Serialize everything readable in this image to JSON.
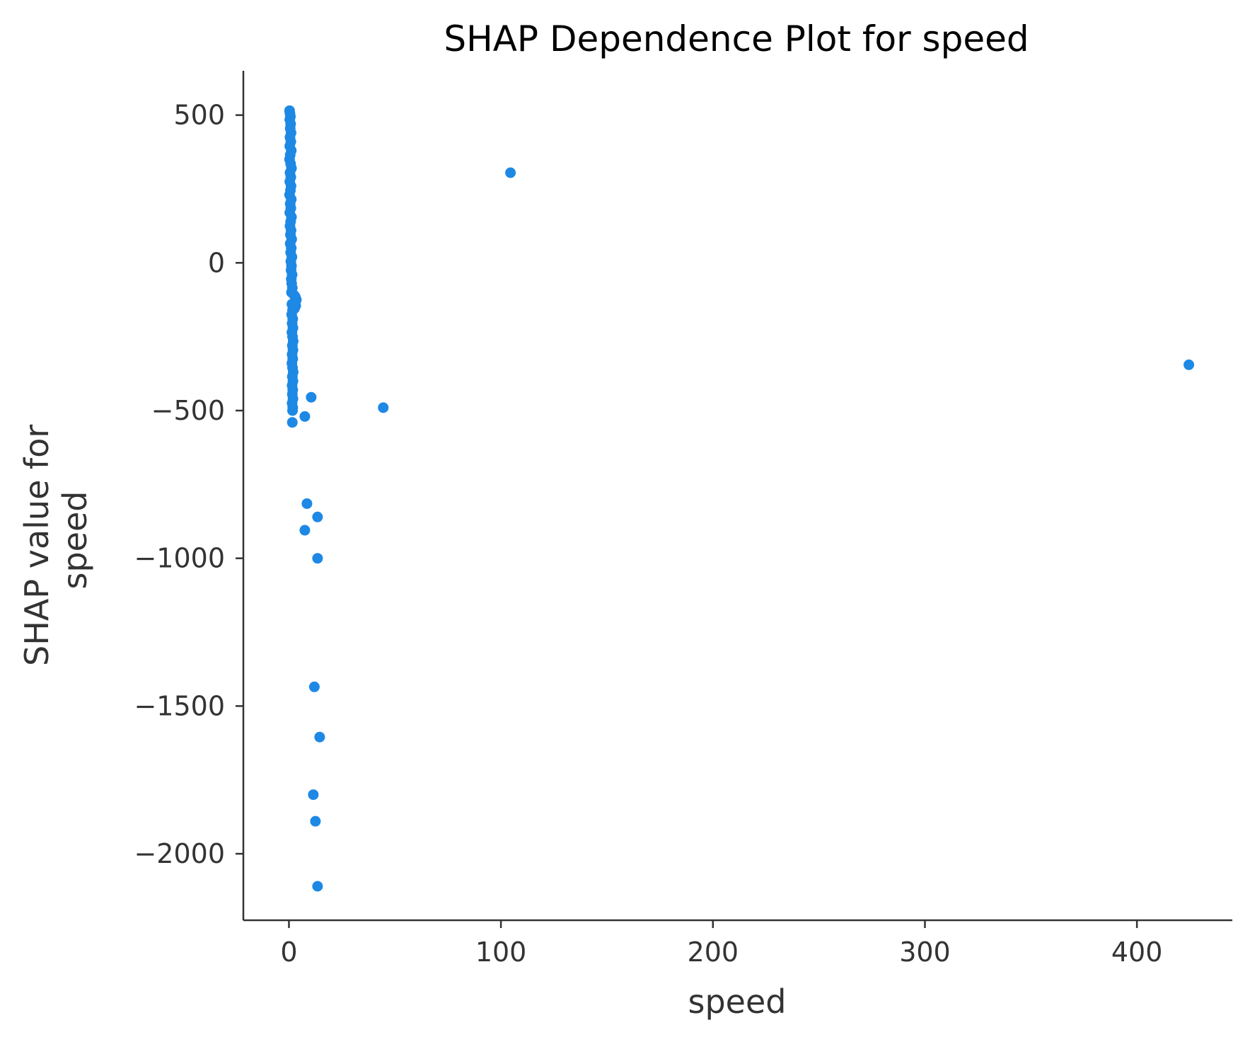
{
  "chart_data": {
    "type": "scatter",
    "title": "SHAP Dependence Plot for speed",
    "xlabel": "speed",
    "ylabel_lines": [
      "SHAP value for",
      "speed"
    ],
    "xlim": [
      -21.5,
      445
    ],
    "ylim": [
      -2225,
      650
    ],
    "xticks": [
      0,
      100,
      200,
      300,
      400
    ],
    "xtick_labels": [
      "0",
      "100",
      "200",
      "300",
      "400"
    ],
    "yticks": [
      500,
      0,
      -500,
      -1000,
      -1500,
      -2000
    ],
    "ytick_labels": [
      "500",
      "0",
      "−500",
      "−1000",
      "−1500",
      "−2000"
    ],
    "grid": false,
    "legend": "none",
    "colors": {
      "point": "#1E88E5",
      "axis": "#333333",
      "title": "#000000"
    },
    "series": [
      {
        "points": [
          {
            "x": 0.3,
            "y": 515
          },
          {
            "x": 0.5,
            "y": 505
          },
          {
            "x": 0.7,
            "y": 495
          },
          {
            "x": 0.4,
            "y": 485
          },
          {
            "x": 0.8,
            "y": 470
          },
          {
            "x": 0.6,
            "y": 455
          },
          {
            "x": 1.0,
            "y": 440
          },
          {
            "x": 0.5,
            "y": 425
          },
          {
            "x": 0.9,
            "y": 410
          },
          {
            "x": 0.4,
            "y": 395
          },
          {
            "x": 1.1,
            "y": 380
          },
          {
            "x": 0.6,
            "y": 365
          },
          {
            "x": 0.3,
            "y": 350
          },
          {
            "x": 0.8,
            "y": 335
          },
          {
            "x": 1.2,
            "y": 320
          },
          {
            "x": 0.5,
            "y": 305
          },
          {
            "x": 0.9,
            "y": 290
          },
          {
            "x": 0.4,
            "y": 275
          },
          {
            "x": 1.0,
            "y": 260
          },
          {
            "x": 0.7,
            "y": 245
          },
          {
            "x": 0.3,
            "y": 230
          },
          {
            "x": 1.1,
            "y": 215
          },
          {
            "x": 0.6,
            "y": 200
          },
          {
            "x": 0.9,
            "y": 185
          },
          {
            "x": 0.4,
            "y": 170
          },
          {
            "x": 1.2,
            "y": 155
          },
          {
            "x": 0.8,
            "y": 140
          },
          {
            "x": 0.5,
            "y": 125
          },
          {
            "x": 1.0,
            "y": 110
          },
          {
            "x": 0.7,
            "y": 95
          },
          {
            "x": 1.3,
            "y": 80
          },
          {
            "x": 0.6,
            "y": 65
          },
          {
            "x": 1.1,
            "y": 50
          },
          {
            "x": 0.8,
            "y": 35
          },
          {
            "x": 1.4,
            "y": 20
          },
          {
            "x": 0.9,
            "y": 5
          },
          {
            "x": 1.2,
            "y": -10
          },
          {
            "x": 1.0,
            "y": -25
          },
          {
            "x": 1.5,
            "y": -40
          },
          {
            "x": 1.1,
            "y": -55
          },
          {
            "x": 1.3,
            "y": -70
          },
          {
            "x": 1.6,
            "y": -85
          },
          {
            "x": 1.2,
            "y": -100
          },
          {
            "x": 2.5,
            "y": -110
          },
          {
            "x": 3.0,
            "y": -115
          },
          {
            "x": 3.5,
            "y": -125
          },
          {
            "x": 2.8,
            "y": -135
          },
          {
            "x": 3.2,
            "y": -145
          },
          {
            "x": 2.6,
            "y": -155
          },
          {
            "x": 1.4,
            "y": -140
          },
          {
            "x": 1.7,
            "y": -160
          },
          {
            "x": 1.3,
            "y": -175
          },
          {
            "x": 1.8,
            "y": -190
          },
          {
            "x": 1.5,
            "y": -205
          },
          {
            "x": 1.9,
            "y": -220
          },
          {
            "x": 1.4,
            "y": -235
          },
          {
            "x": 1.7,
            "y": -250
          },
          {
            "x": 2.0,
            "y": -265
          },
          {
            "x": 1.6,
            "y": -280
          },
          {
            "x": 1.9,
            "y": -295
          },
          {
            "x": 1.5,
            "y": -310
          },
          {
            "x": 1.8,
            "y": -325
          },
          {
            "x": 1.4,
            "y": -340
          },
          {
            "x": 1.7,
            "y": -355
          },
          {
            "x": 2.0,
            "y": -370
          },
          {
            "x": 1.6,
            "y": -385
          },
          {
            "x": 1.9,
            "y": -400
          },
          {
            "x": 1.5,
            "y": -415
          },
          {
            "x": 1.8,
            "y": -430
          },
          {
            "x": 1.6,
            "y": -445
          },
          {
            "x": 1.9,
            "y": -460
          },
          {
            "x": 1.5,
            "y": -475
          },
          {
            "x": 1.8,
            "y": -490
          },
          {
            "x": 1.7,
            "y": -500
          },
          {
            "x": 1.6,
            "y": -540
          },
          {
            "x": 10.5,
            "y": -455
          },
          {
            "x": 7.5,
            "y": -520
          },
          {
            "x": 8.5,
            "y": -815
          },
          {
            "x": 13.5,
            "y": -860
          },
          {
            "x": 7.5,
            "y": -905
          },
          {
            "x": 13.5,
            "y": -1000
          },
          {
            "x": 12.0,
            "y": -1435
          },
          {
            "x": 14.5,
            "y": -1605
          },
          {
            "x": 11.5,
            "y": -1800
          },
          {
            "x": 12.5,
            "y": -1890
          },
          {
            "x": 13.5,
            "y": -2110
          },
          {
            "x": 44.5,
            "y": -490
          },
          {
            "x": 104.5,
            "y": 305
          },
          {
            "x": 424.5,
            "y": -345
          }
        ]
      }
    ]
  }
}
